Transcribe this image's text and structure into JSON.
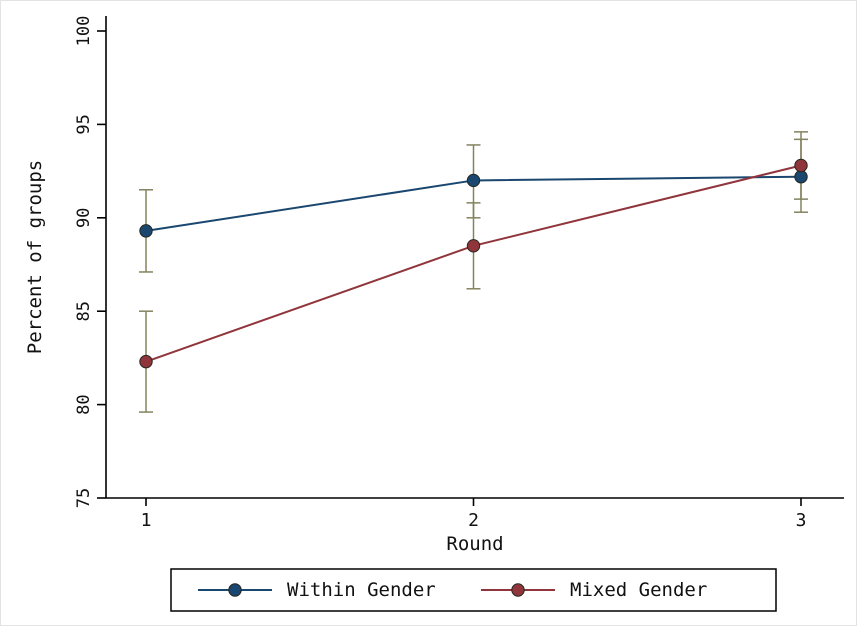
{
  "chart_data": {
    "type": "line",
    "title": "",
    "xlabel": "Round",
    "ylabel": "Percent of groups",
    "x": [
      1,
      2,
      3
    ],
    "xticks": [
      1,
      2,
      3
    ],
    "xtick_labels": [
      "1",
      "2",
      "3"
    ],
    "ylim": [
      75,
      100
    ],
    "yticks": [
      75,
      80,
      85,
      90,
      95,
      100
    ],
    "grid": false,
    "legend_position": "bottom",
    "axis_color": "#000000",
    "background_color": "#ffffff",
    "ci_color": "#83835f",
    "marker_outline": "#26261e",
    "series": [
      {
        "name": "Within Gender",
        "color": "#1a476f",
        "values": [
          89.3,
          92.0,
          92.2
        ],
        "ci_low": [
          87.1,
          90.0,
          90.3
        ],
        "ci_high": [
          91.5,
          93.9,
          94.2
        ]
      },
      {
        "name": "Mixed Gender",
        "color": "#90353b",
        "values": [
          82.3,
          88.5,
          92.8
        ],
        "ci_low": [
          79.6,
          86.2,
          91.0
        ],
        "ci_high": [
          85.0,
          90.8,
          94.6
        ]
      }
    ]
  }
}
